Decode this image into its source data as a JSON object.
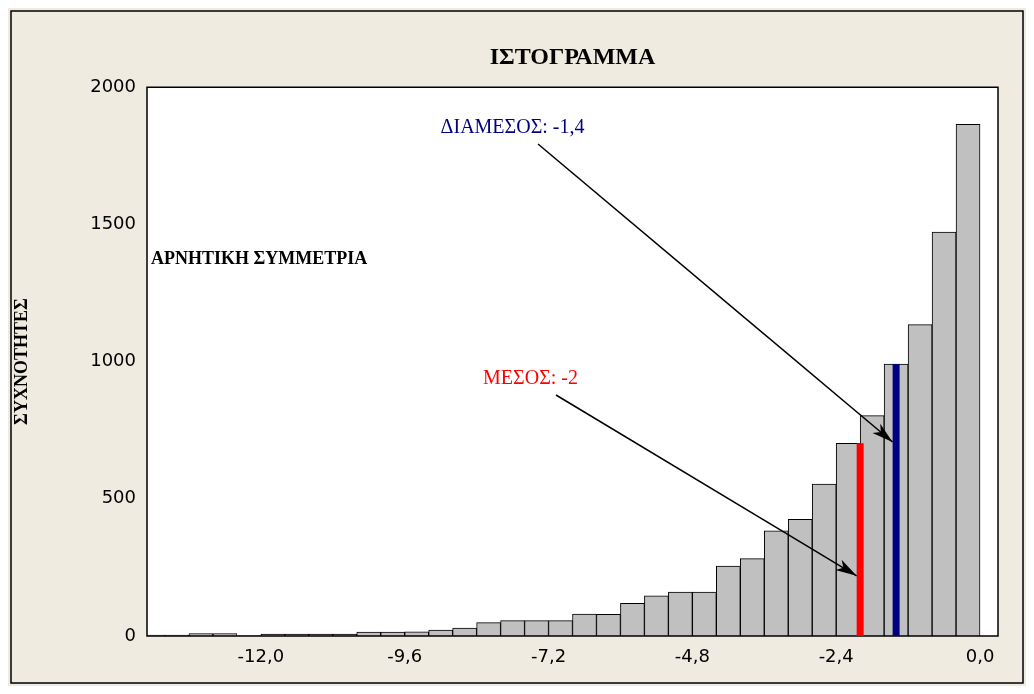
{
  "chart_data": {
    "type": "histogram",
    "title": "ΙΣΤΟΓΡΑΜΜΑ",
    "ylabel": "ΣΥΧΝΟΤΗΤΕΣ",
    "bins": [
      -14.0,
      -13.6,
      -13.2,
      -12.8,
      -12.4,
      -12.0,
      -11.6,
      -11.2,
      -10.8,
      -10.4,
      -10.0,
      -9.6,
      -9.2,
      -8.8,
      -8.4,
      -8.0,
      -7.6,
      -7.2,
      -6.8,
      -6.4,
      -6.0,
      -5.6,
      -5.2,
      -4.8,
      -4.4,
      -4.0,
      -3.6,
      -3.2,
      -2.8,
      -2.4,
      -2.0,
      -1.6,
      -1.2,
      -0.8,
      -0.4,
      0.0
    ],
    "values": [
      3,
      3,
      9,
      9,
      1,
      7,
      7,
      7,
      7,
      14,
      14,
      15,
      22,
      29,
      49,
      56,
      56,
      56,
      80,
      79,
      119,
      146,
      160,
      160,
      255,
      282,
      383,
      425,
      554,
      702,
      803,
      991,
      1135,
      1472,
      1865
    ],
    "color": "#c0c0c0",
    "xlim": [
      -13.9,
      0.3
    ],
    "xticks": [
      {
        "value": -12,
        "label": "-12,0"
      },
      {
        "value": -9.6,
        "label": "-9,6"
      },
      {
        "value": -7.2,
        "label": "-7,2"
      },
      {
        "value": -4.8,
        "label": "-4,8"
      },
      {
        "value": -2.4,
        "label": "-2,4"
      },
      {
        "value": 0,
        "label": "0,0"
      }
    ],
    "ylim": [
      0,
      2000
    ],
    "yticks": [
      0,
      500,
      1000,
      1500,
      2000
    ],
    "grid": false,
    "ref_lines": [
      {
        "axis": "x",
        "value": -2,
        "label": "ΜΕΣΟΣ: -2",
        "color": "#ff0000"
      },
      {
        "axis": "x",
        "value": -1.4,
        "label": "ΔΙΑΜΕΣΟΣ: -1,4",
        "color": "#000080"
      }
    ],
    "annotations": [
      "ΑΡΝΗΤΙΚΗ ΣΥΜΜΕΤΡΙΑ"
    ]
  }
}
